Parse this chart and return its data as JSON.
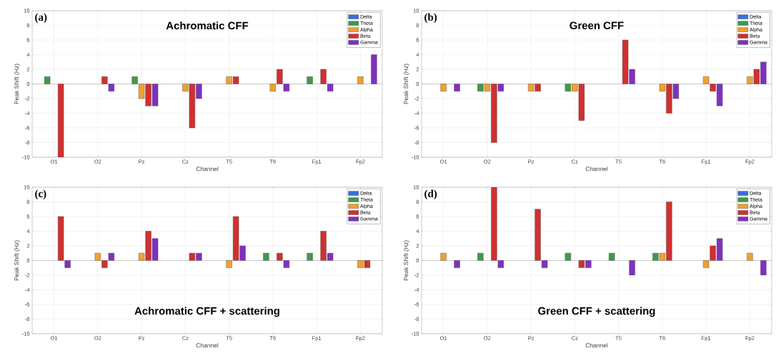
{
  "chart_data": [
    {
      "type": "bar",
      "title": "Achromatic CFF",
      "xlabel": "Channel",
      "ylabel": "Peak Shift (Hz)",
      "annotations": [
        "(a)"
      ],
      "categories": [
        "O1",
        "O2",
        "Pz",
        "Cz",
        "T5",
        "T6",
        "Fp1",
        "Fp2"
      ],
      "ylim": [
        -10,
        10
      ],
      "yticks": [
        -10,
        -8,
        -6,
        -4,
        -2,
        0,
        2,
        4,
        6,
        8,
        10
      ],
      "grid": true,
      "legend": "top right",
      "series": [
        {
          "name": "Delta",
          "color": "#3a6fd8",
          "values": [
            null,
            null,
            null,
            null,
            null,
            null,
            null,
            null
          ]
        },
        {
          "name": "Theta",
          "color": "#3f9a48",
          "values": [
            1,
            null,
            1,
            null,
            null,
            null,
            1,
            null
          ]
        },
        {
          "name": "Alpha",
          "color": "#f0a030",
          "values": [
            null,
            null,
            -2,
            -1,
            1,
            -1,
            null,
            1
          ]
        },
        {
          "name": "Beta",
          "color": "#d03030",
          "values": [
            -10,
            1,
            -3,
            -6,
            1,
            2,
            2,
            null
          ]
        },
        {
          "name": "Gamma",
          "color": "#8030c0",
          "values": [
            null,
            -1,
            -3,
            -2,
            null,
            -1,
            -1,
            4
          ]
        }
      ]
    },
    {
      "type": "bar",
      "title": "Green CFF",
      "xlabel": "Channel",
      "ylabel": "Peak Shift (Hz)",
      "annotations": [
        "(b)"
      ],
      "categories": [
        "O1",
        "O2",
        "Pz",
        "Cz",
        "T5",
        "T6",
        "Fp1",
        "Fp2"
      ],
      "ylim": [
        -10,
        10
      ],
      "yticks": [
        -10,
        -8,
        -6,
        -4,
        -2,
        0,
        2,
        4,
        6,
        8,
        10
      ],
      "grid": true,
      "legend": "top right",
      "series": [
        {
          "name": "Delta",
          "color": "#3a6fd8",
          "values": [
            null,
            null,
            null,
            null,
            null,
            null,
            null,
            null
          ]
        },
        {
          "name": "Theta",
          "color": "#3f9a48",
          "values": [
            null,
            -1,
            null,
            -1,
            null,
            null,
            null,
            null
          ]
        },
        {
          "name": "Alpha",
          "color": "#f0a030",
          "values": [
            -1,
            -1,
            -1,
            -1,
            null,
            -1,
            1,
            1
          ]
        },
        {
          "name": "Beta",
          "color": "#d03030",
          "values": [
            null,
            -8,
            -1,
            -5,
            6,
            -4,
            -1,
            2
          ]
        },
        {
          "name": "Gamma",
          "color": "#8030c0",
          "values": [
            -1,
            -1,
            null,
            null,
            2,
            -2,
            -3,
            3
          ]
        }
      ]
    },
    {
      "type": "bar",
      "title": "Achromatic CFF + scattering",
      "xlabel": "Channel",
      "ylabel": "Peak Shift (Hz)",
      "annotations": [
        "(c)"
      ],
      "categories": [
        "O1",
        "O2",
        "Pz",
        "Cz",
        "T5",
        "T6",
        "Fp1",
        "Fp2"
      ],
      "ylim": [
        -10,
        10
      ],
      "yticks": [
        -10,
        -8,
        -6,
        -4,
        -2,
        0,
        2,
        4,
        6,
        8,
        10
      ],
      "grid": true,
      "legend": "top right",
      "series": [
        {
          "name": "Delta",
          "color": "#3a6fd8",
          "values": [
            null,
            null,
            null,
            null,
            null,
            null,
            null,
            null
          ]
        },
        {
          "name": "Theta",
          "color": "#3f9a48",
          "values": [
            null,
            null,
            null,
            null,
            null,
            1,
            1,
            null
          ]
        },
        {
          "name": "Alpha",
          "color": "#f0a030",
          "values": [
            null,
            1,
            1,
            null,
            -1,
            null,
            null,
            -1
          ]
        },
        {
          "name": "Beta",
          "color": "#d03030",
          "values": [
            6,
            -1,
            4,
            1,
            6,
            1,
            4,
            -1
          ]
        },
        {
          "name": "Gamma",
          "color": "#8030c0",
          "values": [
            -1,
            1,
            3,
            1,
            2,
            -1,
            1,
            null
          ]
        }
      ]
    },
    {
      "type": "bar",
      "title": "Green CFF + scattering",
      "xlabel": "Channel",
      "ylabel": "Peak Shift (Hz)",
      "annotations": [
        "(d)"
      ],
      "categories": [
        "O1",
        "O2",
        "Pz",
        "Cz",
        "T5",
        "T6",
        "Fp1",
        "Fp2"
      ],
      "ylim": [
        -10,
        10
      ],
      "yticks": [
        -10,
        -8,
        -6,
        -4,
        -2,
        0,
        2,
        4,
        6,
        8,
        10
      ],
      "grid": true,
      "legend": "top right",
      "series": [
        {
          "name": "Delta",
          "color": "#3a6fd8",
          "values": [
            null,
            null,
            null,
            null,
            null,
            null,
            null,
            null
          ]
        },
        {
          "name": "Theta",
          "color": "#3f9a48",
          "values": [
            null,
            1,
            null,
            1,
            1,
            1,
            null,
            null
          ]
        },
        {
          "name": "Alpha",
          "color": "#f0a030",
          "values": [
            1,
            null,
            null,
            null,
            null,
            1,
            -1,
            1
          ]
        },
        {
          "name": "Beta",
          "color": "#d03030",
          "values": [
            null,
            10,
            7,
            -1,
            null,
            8,
            2,
            null
          ]
        },
        {
          "name": "Gamma",
          "color": "#8030c0",
          "values": [
            -1,
            -1,
            -1,
            -1,
            -2,
            null,
            3,
            -2
          ]
        }
      ]
    }
  ]
}
